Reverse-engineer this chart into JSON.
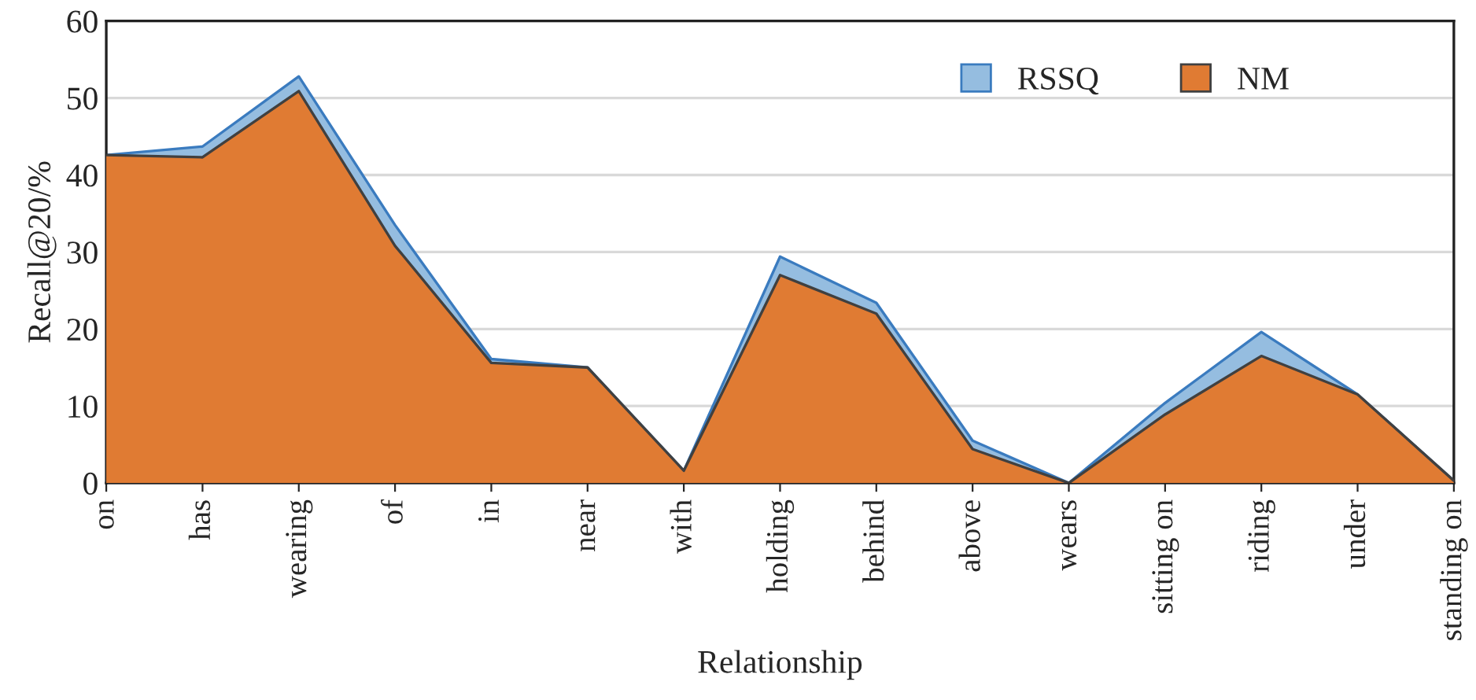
{
  "chart_data": {
    "type": "area",
    "xlabel": "Relationship",
    "ylabel": "Recall@20/%",
    "categories": [
      "on",
      "has",
      "wearing",
      "of",
      "in",
      "near",
      "with",
      "holding",
      "behind",
      "above",
      "wears",
      "sitting on",
      "riding",
      "under",
      "standing on"
    ],
    "series": [
      {
        "name": "RSSQ",
        "color": "#95bde0",
        "values": [
          42.6,
          43.7,
          52.8,
          33.5,
          16.1,
          15.0,
          1.6,
          29.4,
          23.4,
          5.5,
          0,
          10.4,
          19.6,
          11.5,
          0.3
        ]
      },
      {
        "name": "NM",
        "color": "#e07b33",
        "values": [
          42.6,
          42.3,
          50.9,
          30.8,
          15.6,
          15.0,
          1.6,
          27.0,
          22.0,
          4.4,
          0,
          8.9,
          16.5,
          11.5,
          0.3
        ]
      }
    ],
    "ylim": [
      0,
      60
    ],
    "yticks": [
      0,
      10,
      20,
      30,
      40,
      50,
      60
    ],
    "grid": "y",
    "legend": "top right"
  }
}
